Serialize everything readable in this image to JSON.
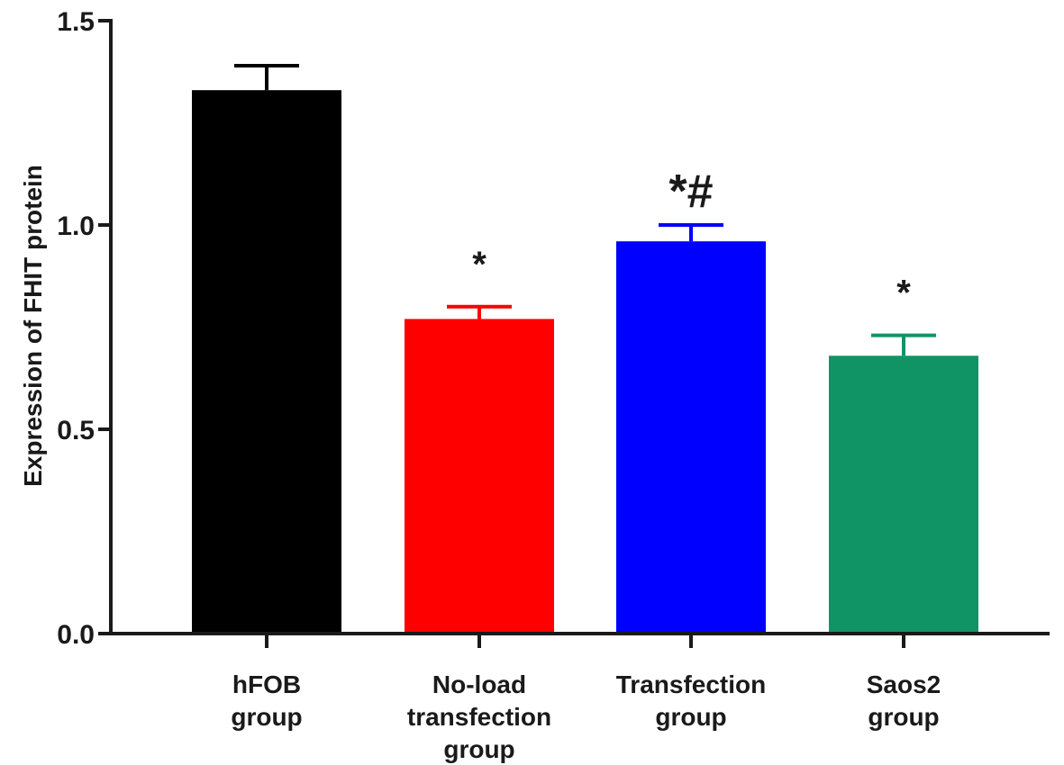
{
  "chart_data": {
    "type": "bar",
    "title": "",
    "xlabel": "",
    "ylabel": "Expression of FHIT protein",
    "ylim": [
      0,
      1.5
    ],
    "yticks": [
      "0.0",
      "0.5",
      "1.0",
      "1.5"
    ],
    "ytick_values": [
      0,
      0.5,
      1.0,
      1.5
    ],
    "grid": false,
    "categories": [
      [
        "hFOB",
        "group"
      ],
      [
        "No-load",
        "transfection",
        "group"
      ],
      [
        "Transfection",
        "group"
      ],
      [
        "Saos2",
        "group"
      ]
    ],
    "values": [
      1.33,
      0.77,
      0.96,
      0.68
    ],
    "errors": [
      0.06,
      0.03,
      0.04,
      0.05
    ],
    "colors": [
      "#000000",
      "#ff0000",
      "#0000ff",
      "#109466"
    ],
    "annotations": [
      "",
      "*",
      "*#",
      "*"
    ]
  }
}
